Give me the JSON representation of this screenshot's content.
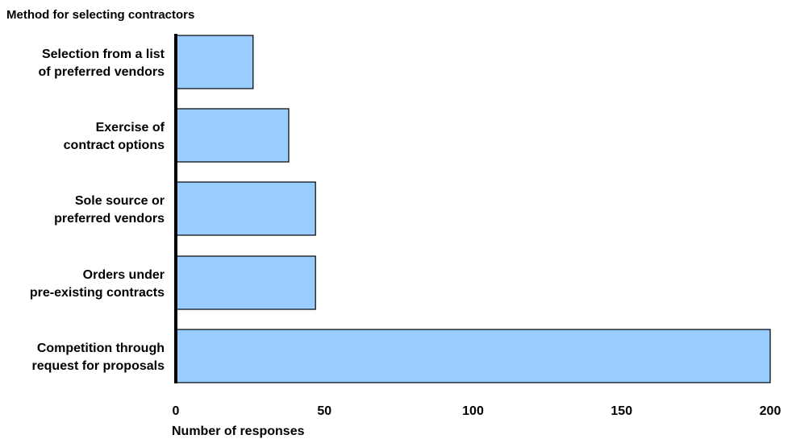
{
  "chart_data": {
    "type": "bar",
    "orientation": "horizontal",
    "ylabel": "Method for selecting contractors",
    "xlabel": "Number of responses",
    "categories": [
      [
        "Selection from a list",
        "of preferred vendors"
      ],
      [
        "Exercise of",
        "contract options"
      ],
      [
        "Sole source or",
        "preferred vendors"
      ],
      [
        "Orders under",
        "pre-existing contracts"
      ],
      [
        "Competition through",
        "request for proposals"
      ]
    ],
    "values": [
      26,
      38,
      47,
      47,
      200
    ],
    "xlim": [
      0,
      200
    ],
    "xticks": [
      0,
      50,
      100,
      150,
      200
    ],
    "grid": false,
    "bar_color": "#99ccff",
    "bar_edge_color": "#000000"
  }
}
